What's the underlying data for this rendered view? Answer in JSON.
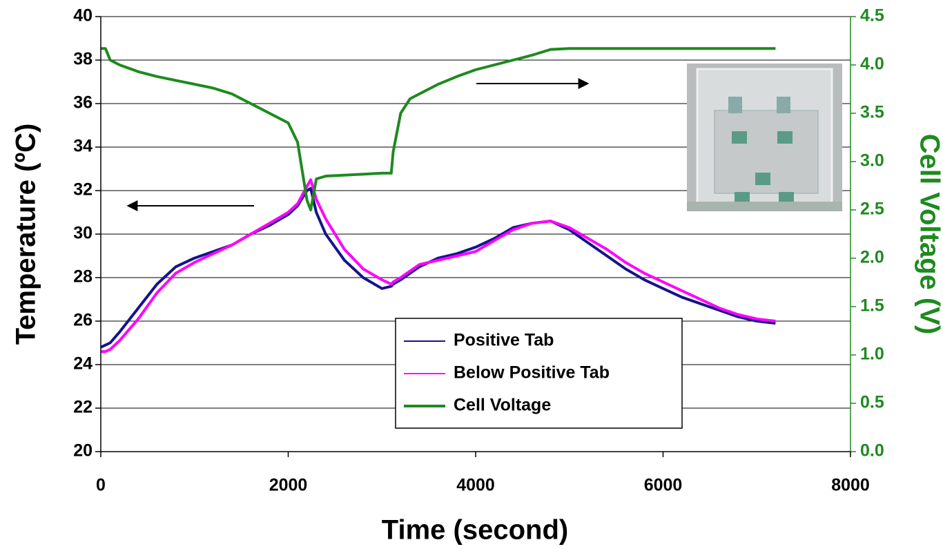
{
  "chart_data": {
    "type": "line",
    "xlabel": "Time (second)",
    "ylabel": "Temperature (ºC)",
    "y2label": "Cell Voltage (V)",
    "x": [
      0,
      50,
      100,
      200,
      400,
      600,
      800,
      1000,
      1200,
      1400,
      1600,
      1800,
      2000,
      2100,
      2200,
      2240,
      2300,
      2400,
      2600,
      2800,
      3000,
      3100,
      3120,
      3200,
      3300,
      3400,
      3600,
      3800,
      4000,
      4200,
      4400,
      4600,
      4800,
      5000,
      5200,
      5400,
      5600,
      5800,
      6000,
      6200,
      6400,
      6600,
      6800,
      7000,
      7200
    ],
    "series": [
      {
        "name": "Positive Tab",
        "color": "#14148c",
        "axis": "y",
        "values": [
          24.8,
          24.9,
          25.0,
          25.5,
          26.6,
          27.7,
          28.5,
          28.9,
          29.2,
          29.5,
          30.0,
          30.4,
          30.9,
          31.3,
          32.0,
          32.1,
          31.0,
          30.0,
          28.8,
          28.0,
          27.5,
          27.6,
          27.7,
          27.9,
          28.2,
          28.5,
          28.9,
          29.1,
          29.4,
          29.8,
          30.3,
          30.5,
          30.6,
          30.2,
          29.6,
          29.0,
          28.4,
          27.9,
          27.5,
          27.1,
          26.8,
          26.5,
          26.2,
          26.0,
          25.9
        ]
      },
      {
        "name": "Below Positive Tab",
        "color": "#ff00ff",
        "axis": "y",
        "values": [
          24.6,
          24.6,
          24.7,
          25.1,
          26.1,
          27.3,
          28.2,
          28.7,
          29.1,
          29.5,
          30.0,
          30.5,
          31.0,
          31.4,
          32.2,
          32.5,
          31.6,
          30.7,
          29.3,
          28.4,
          27.9,
          27.7,
          27.8,
          28.0,
          28.3,
          28.6,
          28.8,
          29.0,
          29.2,
          29.7,
          30.2,
          30.5,
          30.6,
          30.3,
          29.8,
          29.3,
          28.7,
          28.2,
          27.8,
          27.4,
          27.0,
          26.6,
          26.3,
          26.1,
          26.0
        ]
      },
      {
        "name": "Cell Voltage",
        "color": "#1e8a1e",
        "axis": "y2",
        "values": [
          4.17,
          4.17,
          4.05,
          4.0,
          3.93,
          3.88,
          3.84,
          3.8,
          3.76,
          3.7,
          3.6,
          3.5,
          3.4,
          3.2,
          2.6,
          2.5,
          2.82,
          2.85,
          2.86,
          2.87,
          2.88,
          2.88,
          3.1,
          3.5,
          3.65,
          3.7,
          3.8,
          3.88,
          3.95,
          4.0,
          4.05,
          4.1,
          4.16,
          4.17,
          4.17,
          4.17,
          4.17,
          4.17,
          4.17,
          4.17,
          4.17,
          4.17,
          4.17,
          4.17,
          4.17
        ]
      }
    ],
    "xlim": [
      0,
      8000
    ],
    "xticks": [
      0,
      2000,
      4000,
      6000,
      8000
    ],
    "ylim": [
      20,
      40
    ],
    "yticks": [
      20,
      22,
      24,
      26,
      28,
      30,
      32,
      34,
      36,
      38,
      40
    ],
    "y2lim": [
      0,
      4.5
    ],
    "y2ticks": [
      {
        "value": 0,
        "label": "0.0"
      },
      0.5,
      {
        "value": 1,
        "label": "1.0"
      },
      1.5,
      {
        "value": 2,
        "label": "2.0"
      },
      2.5,
      {
        "value": 3,
        "label": "3.0"
      },
      3.5,
      {
        "value": 4,
        "label": "4.0"
      },
      4.5
    ],
    "grid": true
  }
}
